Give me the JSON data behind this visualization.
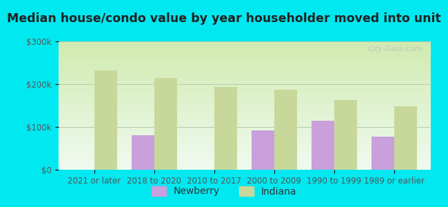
{
  "title": "Median house/condo value by year householder moved into unit",
  "categories": [
    "2021 or later",
    "2018 to 2020",
    "2010 to 2017",
    "2000 to 2009",
    "1990 to 1999",
    "1989 or earlier"
  ],
  "newberry_values": [
    null,
    80000,
    null,
    92000,
    115000,
    78000
  ],
  "indiana_values": [
    232000,
    215000,
    193000,
    187000,
    163000,
    148000
  ],
  "newberry_color": "#c9a0dc",
  "indiana_color": "#c8d89a",
  "background_outer": "#00e8f0",
  "background_inner_top": "#d0ebb0",
  "background_inner_bottom": "#f0faf0",
  "grid_color": "#b8c8a8",
  "ylim": [
    0,
    300000
  ],
  "yticks": [
    0,
    100000,
    200000,
    300000
  ],
  "ytick_labels": [
    "$0",
    "$100k",
    "$200k",
    "$300k"
  ],
  "bar_width": 0.38,
  "legend_labels": [
    "Newberry",
    "Indiana"
  ],
  "watermark": "City-Data.com",
  "title_fontsize": 12.5,
  "tick_fontsize": 8.5,
  "legend_fontsize": 10
}
